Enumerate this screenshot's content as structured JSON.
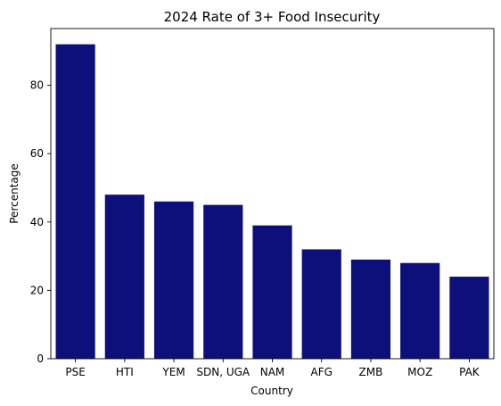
{
  "chart_data": {
    "type": "bar",
    "title": "2024 Rate of 3+ Food Insecurity",
    "xlabel": "Country",
    "ylabel": "Percentage",
    "categories": [
      "PSE",
      "HTI",
      "YEM",
      "SDN, UGA",
      "NAM",
      "AFG",
      "ZMB",
      "MOZ",
      "PAK"
    ],
    "values": [
      92,
      48,
      46,
      45,
      39,
      32,
      29,
      28,
      24
    ],
    "ylim": [
      0,
      96.6
    ],
    "yticks": [
      0,
      20,
      40,
      60,
      80
    ],
    "bar_color": "#0d0f7a",
    "grid": false,
    "legend": "none"
  }
}
